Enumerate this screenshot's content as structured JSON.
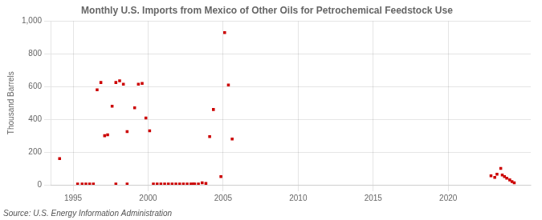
{
  "chart_data": {
    "type": "scatter",
    "title": "Monthly U.S. Imports from Mexico of Other Oils for Petrochemical Feedstock Use",
    "ylabel": "Thousand Barrels",
    "annotations": [
      "Source: U.S. Energy Information Administration"
    ],
    "color": "#cc0000",
    "marker": "square",
    "grid": true,
    "xlim": [
      1993.5,
      2025.5
    ],
    "xticks": [
      1995,
      2000,
      2005,
      2010,
      2015,
      2020
    ],
    "ylim": [
      0,
      1000
    ],
    "yticks": [
      0,
      200,
      400,
      600,
      800,
      {
        "value": 1000,
        "label": "1,000"
      }
    ],
    "x": [
      1994.1,
      1996.6,
      1996.85,
      1997.1,
      1997.3,
      1997.6,
      1997.85,
      1998.1,
      1998.35,
      1998.6,
      1999.1,
      1999.35,
      1999.6,
      1999.85,
      2000.1,
      1995.3,
      1995.6,
      1995.85,
      1996.1,
      1996.35,
      1997.85,
      1998.6,
      2000.35,
      2000.6,
      2000.85,
      2001.1,
      2001.35,
      2001.6,
      2001.85,
      2002.1,
      2002.35,
      2002.6,
      2002.85,
      2003.0,
      2003.1,
      2003.35,
      2003.6,
      2003.85,
      2004.1,
      2004.35,
      2004.85,
      2005.1,
      2005.35,
      2005.6,
      2022.85,
      2023.1,
      2023.25,
      2023.5,
      2023.6,
      2023.75,
      2023.9,
      2024.1,
      2024.25,
      2024.4
    ],
    "values": [
      160,
      580,
      625,
      300,
      305,
      480,
      625,
      635,
      615,
      325,
      470,
      615,
      620,
      408,
      330,
      5,
      5,
      5,
      5,
      5,
      5,
      5,
      5,
      5,
      5,
      5,
      5,
      5,
      5,
      5,
      5,
      5,
      5,
      5,
      5,
      5,
      12,
      8,
      295,
      460,
      50,
      930,
      610,
      280,
      55,
      45,
      65,
      100,
      60,
      50,
      40,
      30,
      20,
      12
    ]
  }
}
